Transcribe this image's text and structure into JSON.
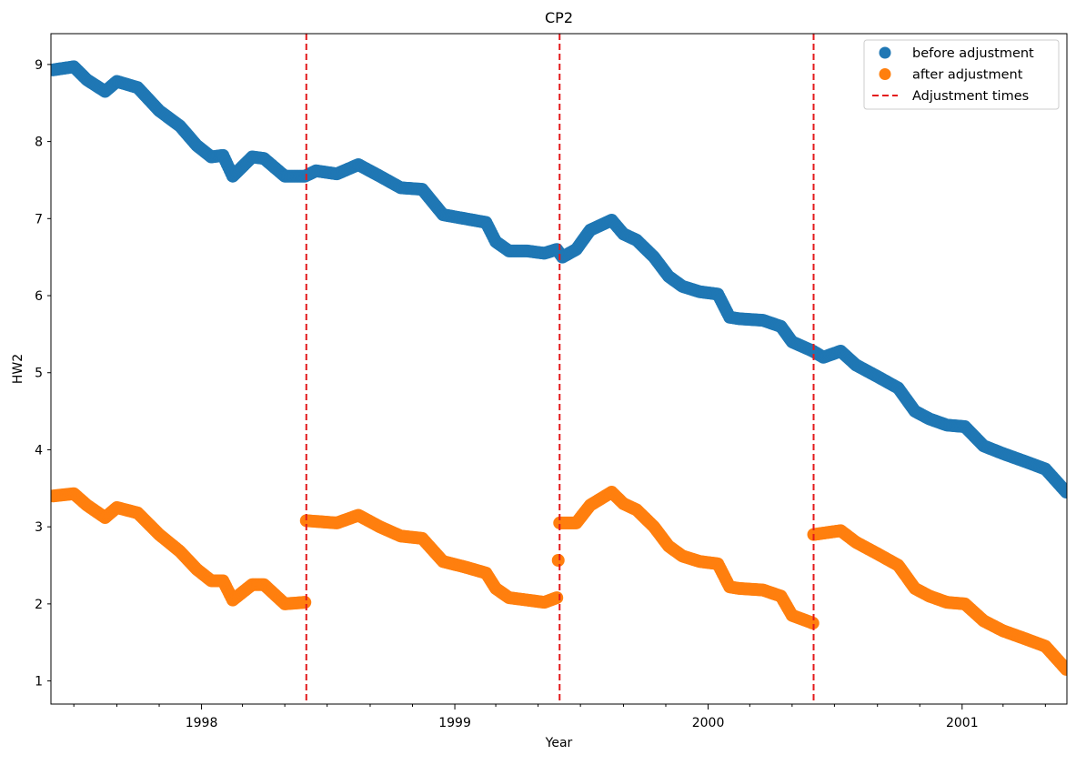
{
  "chart_data": {
    "type": "scatter",
    "title": "CP2",
    "xlabel": "Year",
    "ylabel": "HW2",
    "xlim": [
      "1997-05-29",
      "2001-06-01"
    ],
    "ylim": [
      0.7,
      9.4
    ],
    "x_ticks": [
      "1998",
      "1999",
      "2000",
      "2001"
    ],
    "y_ticks": [
      "1",
      "2",
      "3",
      "4",
      "5",
      "6",
      "7",
      "8",
      "9"
    ],
    "grid": false,
    "legend_position": "upper right",
    "series": [
      {
        "name": "before adjustment",
        "color": "#1f77b4",
        "points": [
          [
            "1997-06-01",
            8.93
          ],
          [
            "1997-07-01",
            8.97
          ],
          [
            "1997-07-20",
            8.8
          ],
          [
            "1997-08-15",
            8.65
          ],
          [
            "1997-09-01",
            8.78
          ],
          [
            "1997-10-01",
            8.7
          ],
          [
            "1997-11-01",
            8.4
          ],
          [
            "1997-12-01",
            8.2
          ],
          [
            "1997-12-25",
            7.95
          ],
          [
            "1998-01-15",
            7.8
          ],
          [
            "1998-02-01",
            7.82
          ],
          [
            "1998-02-15",
            7.55
          ],
          [
            "1998-03-15",
            7.8
          ],
          [
            "1998-04-01",
            7.78
          ],
          [
            "1998-05-01",
            7.55
          ],
          [
            "1998-05-30",
            7.55
          ],
          [
            "1998-06-15",
            7.62
          ],
          [
            "1998-07-15",
            7.58
          ],
          [
            "1998-08-15",
            7.7
          ],
          [
            "1998-09-15",
            7.55
          ],
          [
            "1998-10-15",
            7.4
          ],
          [
            "1998-11-15",
            7.38
          ],
          [
            "1998-12-15",
            7.05
          ],
          [
            "1999-01-15",
            7.0
          ],
          [
            "1999-02-15",
            6.95
          ],
          [
            "1999-03-01",
            6.7
          ],
          [
            "1999-03-20",
            6.58
          ],
          [
            "1999-04-15",
            6.58
          ],
          [
            "1999-05-10",
            6.55
          ],
          [
            "1999-05-28",
            6.6
          ],
          [
            "1999-06-05",
            6.5
          ],
          [
            "1999-06-25",
            6.6
          ],
          [
            "1999-07-15",
            6.85
          ],
          [
            "1999-08-15",
            6.98
          ],
          [
            "1999-09-01",
            6.8
          ],
          [
            "1999-09-20",
            6.72
          ],
          [
            "1999-10-15",
            6.5
          ],
          [
            "1999-11-05",
            6.25
          ],
          [
            "1999-11-25",
            6.12
          ],
          [
            "1999-12-20",
            6.05
          ],
          [
            "2000-01-15",
            6.02
          ],
          [
            "2000-02-01",
            5.72
          ],
          [
            "2000-02-15",
            5.7
          ],
          [
            "2000-03-20",
            5.68
          ],
          [
            "2000-04-15",
            5.6
          ],
          [
            "2000-05-01",
            5.4
          ],
          [
            "2000-05-31",
            5.28
          ],
          [
            "2000-06-15",
            5.2
          ],
          [
            "2000-07-10",
            5.28
          ],
          [
            "2000-08-01",
            5.1
          ],
          [
            "2000-09-01",
            4.95
          ],
          [
            "2000-10-01",
            4.8
          ],
          [
            "2000-10-25",
            4.5
          ],
          [
            "2000-11-15",
            4.4
          ],
          [
            "2000-12-10",
            4.32
          ],
          [
            "2001-01-05",
            4.3
          ],
          [
            "2001-02-01",
            4.05
          ],
          [
            "2001-03-01",
            3.95
          ],
          [
            "2001-04-01",
            3.85
          ],
          [
            "2001-05-01",
            3.75
          ],
          [
            "2001-05-31",
            3.45
          ]
        ]
      },
      {
        "name": "after adjustment",
        "color": "#ff7f0e",
        "points": [
          [
            "1997-06-01",
            3.4
          ],
          [
            "1997-07-01",
            3.43
          ],
          [
            "1997-07-20",
            3.28
          ],
          [
            "1997-08-15",
            3.12
          ],
          [
            "1997-09-01",
            3.25
          ],
          [
            "1997-10-01",
            3.18
          ],
          [
            "1997-11-01",
            2.9
          ],
          [
            "1997-12-01",
            2.68
          ],
          [
            "1997-12-25",
            2.45
          ],
          [
            "1998-01-15",
            2.3
          ],
          [
            "1998-02-01",
            2.3
          ],
          [
            "1998-02-15",
            2.05
          ],
          [
            "1998-03-15",
            2.25
          ],
          [
            "1998-04-01",
            2.25
          ],
          [
            "1998-05-01",
            2.0
          ],
          [
            "1998-05-30",
            2.02
          ],
          [
            "1998-06-01",
            3.08
          ],
          [
            "1998-07-15",
            3.05
          ],
          [
            "1998-08-15",
            3.15
          ],
          [
            "1998-09-15",
            3.0
          ],
          [
            "1998-10-15",
            2.88
          ],
          [
            "1998-11-15",
            2.85
          ],
          [
            "1998-12-15",
            2.55
          ],
          [
            "1999-01-15",
            2.48
          ],
          [
            "1999-02-15",
            2.4
          ],
          [
            "1999-03-01",
            2.2
          ],
          [
            "1999-03-20",
            2.08
          ],
          [
            "1999-04-15",
            2.05
          ],
          [
            "1999-05-10",
            2.02
          ],
          [
            "1999-05-28",
            2.08
          ],
          [
            "1999-06-01",
            3.05
          ],
          [
            "1999-06-25",
            3.05
          ],
          [
            "1999-07-15",
            3.28
          ],
          [
            "1999-08-15",
            3.45
          ],
          [
            "1999-09-01",
            3.3
          ],
          [
            "1999-09-20",
            3.22
          ],
          [
            "1999-10-15",
            3.0
          ],
          [
            "1999-11-05",
            2.75
          ],
          [
            "1999-11-25",
            2.62
          ],
          [
            "1999-12-20",
            2.55
          ],
          [
            "2000-01-15",
            2.52
          ],
          [
            "2000-02-01",
            2.22
          ],
          [
            "2000-02-15",
            2.2
          ],
          [
            "2000-03-20",
            2.18
          ],
          [
            "2000-04-15",
            2.1
          ],
          [
            "2000-05-01",
            1.85
          ],
          [
            "2000-05-31",
            1.75
          ],
          [
            "2000-06-01",
            2.9
          ],
          [
            "2000-07-10",
            2.95
          ],
          [
            "2000-08-01",
            2.8
          ],
          [
            "2000-09-01",
            2.65
          ],
          [
            "2000-10-01",
            2.5
          ],
          [
            "2000-10-25",
            2.2
          ],
          [
            "2000-11-15",
            2.1
          ],
          [
            "2000-12-10",
            2.02
          ],
          [
            "2001-01-05",
            2.0
          ],
          [
            "2001-02-01",
            1.78
          ],
          [
            "2001-03-01",
            1.65
          ],
          [
            "2001-04-01",
            1.55
          ],
          [
            "2001-05-01",
            1.45
          ],
          [
            "2001-05-31",
            1.15
          ]
        ]
      },
      {
        "name": "Adjustment times",
        "color": "#e31a1c",
        "style": "dashed vertical line",
        "x": [
          "1998-06-01",
          "1999-06-01",
          "2000-06-01"
        ]
      }
    ]
  }
}
